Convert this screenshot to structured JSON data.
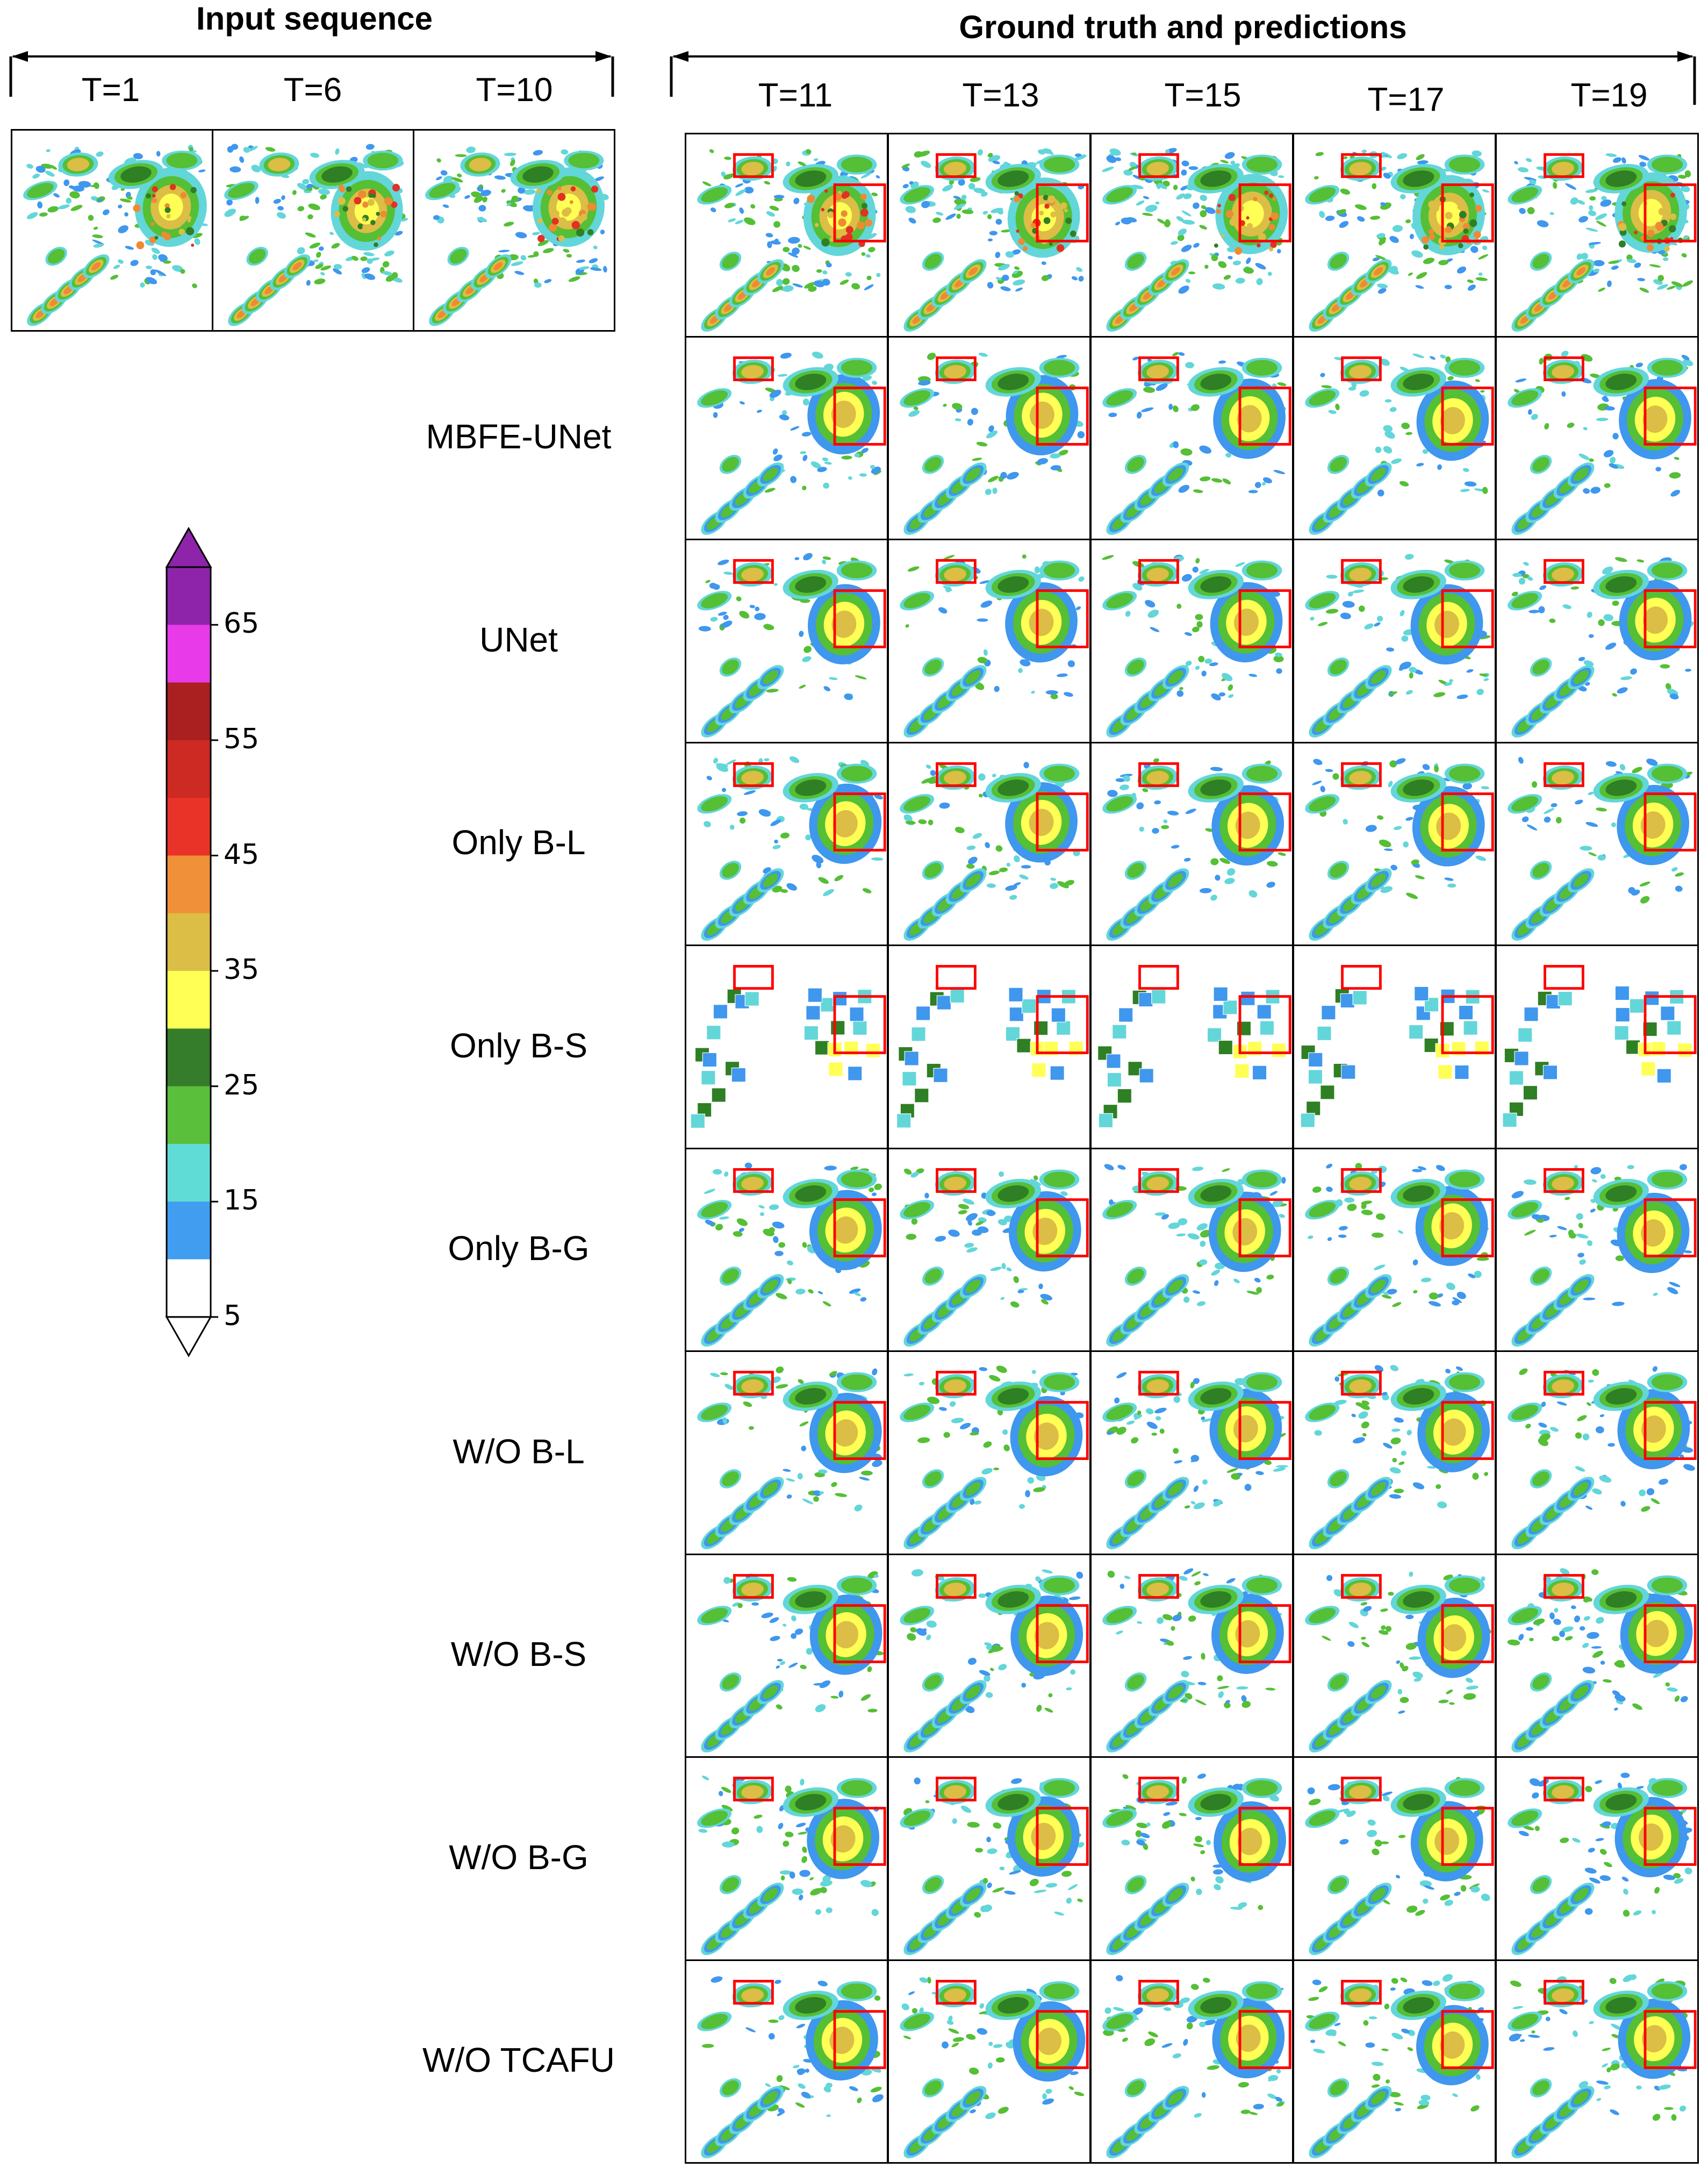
{
  "headers": {
    "input": "Input sequence",
    "ground": "Ground truth and predictions"
  },
  "input_steps": [
    "T=1",
    "T=6",
    "T=10"
  ],
  "output_steps": [
    "T=11",
    "T=13",
    "T=15",
    "T=17",
    "T=19"
  ],
  "rows": [
    {
      "label": ""
    },
    {
      "label": "MBFE-UNet"
    },
    {
      "label": "UNet"
    },
    {
      "label": "Only B-L"
    },
    {
      "label": "Only B-S"
    },
    {
      "label": "Only B-G"
    },
    {
      "label": "W/O B-L"
    },
    {
      "label": "W/O B-S"
    },
    {
      "label": "W/O B-G"
    },
    {
      "label": "W/O TCAFU"
    }
  ],
  "colorbar": {
    "ticks": [
      "65",
      "55",
      "45",
      "35",
      "25",
      "15",
      "5"
    ],
    "colors_top_to_bottom": [
      "#8e24aa",
      "#e83ae8",
      "#aa1f1f",
      "#cc2a22",
      "#ea3328",
      "#f0913a",
      "#dcbd45",
      "#ffff55",
      "#357d2a",
      "#5abf3a",
      "#5fdcd6",
      "#419df0",
      "#ffffff"
    ]
  },
  "palette": {
    "light_blue": "#63d6d9",
    "blue": "#3f97ee",
    "green": "#55bf35",
    "dark_green": "#2f7f24",
    "yellow": "#ffff55",
    "gold": "#dcbd45",
    "orange": "#ef8a33",
    "red": "#e23123",
    "highlight_box": "#ff0000"
  }
}
